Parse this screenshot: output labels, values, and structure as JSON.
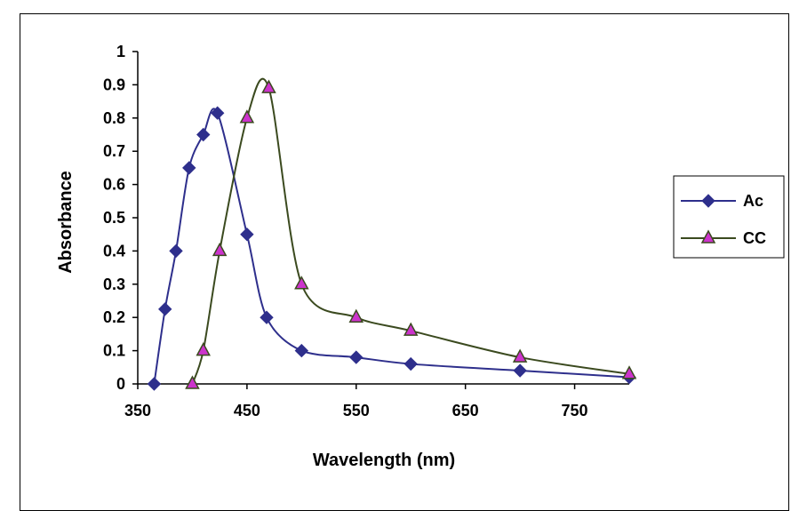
{
  "chart_data": {
    "type": "line",
    "title": "",
    "xlabel": "Wavelength (nm)",
    "ylabel": "Absorbance",
    "xlim": [
      350,
      800
    ],
    "ylim": [
      0,
      1
    ],
    "x_ticks": [
      350,
      450,
      550,
      650,
      750
    ],
    "y_ticks": [
      0,
      0.1,
      0.2,
      0.3,
      0.4,
      0.5,
      0.6,
      0.7,
      0.8,
      0.9,
      1
    ],
    "grid": false,
    "legend_position": "right",
    "series": [
      {
        "name": "Ac",
        "color": "#2e2f8c",
        "marker": "diamond",
        "marker_color": "#2e2f8c",
        "x": [
          365,
          375,
          385,
          397,
          410,
          423,
          450,
          468,
          500,
          550,
          600,
          700,
          800
        ],
        "y": [
          0,
          0.225,
          0.4,
          0.65,
          0.75,
          0.815,
          0.45,
          0.2,
          0.1,
          0.08,
          0.06,
          0.04,
          0.02
        ]
      },
      {
        "name": "CC",
        "color": "#3b4a1f",
        "marker": "triangle",
        "marker_color": "#cc33cc",
        "x": [
          400,
          410,
          425,
          450,
          470,
          500,
          550,
          600,
          700,
          800
        ],
        "y": [
          0,
          0.1,
          0.4,
          0.8,
          0.89,
          0.3,
          0.2,
          0.16,
          0.08,
          0.03
        ]
      }
    ]
  }
}
